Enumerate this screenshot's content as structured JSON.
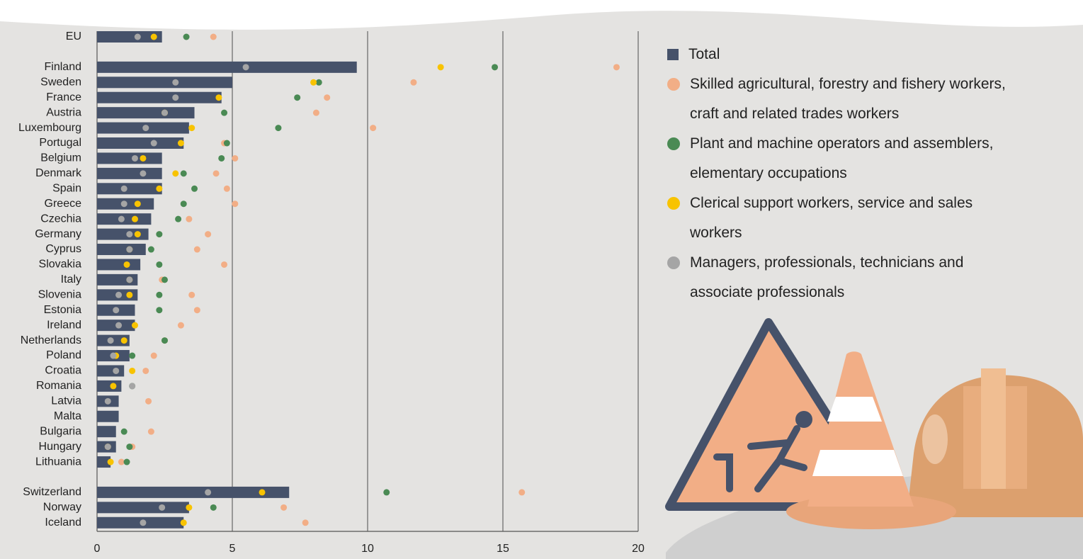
{
  "chart_data": {
    "type": "bar",
    "categories": [
      "EU",
      "Finland",
      "Sweden",
      "France",
      "Austria",
      "Luxembourg",
      "Portugal",
      "Belgium",
      "Denmark",
      "Spain",
      "Greece",
      "Czechia",
      "Germany",
      "Cyprus",
      "Slovakia",
      "Italy",
      "Slovenia",
      "Estonia",
      "Ireland",
      "Netherlands",
      "Poland",
      "Croatia",
      "Romania",
      "Latvia",
      "Malta",
      "Bulgaria",
      "Hungary",
      "Lithuania",
      "Switzerland",
      "Norway",
      "Iceland"
    ],
    "series": [
      {
        "name": "Total",
        "color": "#46526a",
        "values": [
          2.4,
          9.6,
          5.0,
          4.6,
          3.6,
          3.4,
          3.2,
          2.4,
          2.4,
          2.4,
          2.1,
          2.0,
          1.9,
          1.8,
          1.6,
          1.5,
          1.5,
          1.4,
          1.4,
          1.2,
          1.2,
          1.0,
          0.9,
          0.8,
          0.8,
          0.7,
          0.7,
          0.5,
          7.1,
          3.4,
          3.2
        ]
      },
      {
        "name": "Skilled agricultural, forestry and fishery workers, craft and related trades workers",
        "color": "#f2ae86",
        "values": [
          4.3,
          19.2,
          11.7,
          8.5,
          8.1,
          10.2,
          4.7,
          5.1,
          4.4,
          4.8,
          5.1,
          3.4,
          4.1,
          3.7,
          4.7,
          2.4,
          3.5,
          3.7,
          3.1,
          2.5,
          2.1,
          1.8,
          null,
          1.9,
          null,
          2.0,
          1.3,
          0.9,
          15.7,
          6.9,
          7.7
        ]
      },
      {
        "name": "Plant and machine operators and assemblers, elementary occupations",
        "color": "#4a8a54",
        "values": [
          3.3,
          14.7,
          8.2,
          7.4,
          4.7,
          6.7,
          4.8,
          4.6,
          3.2,
          3.6,
          3.2,
          3.0,
          2.3,
          2.0,
          2.3,
          2.5,
          2.3,
          2.3,
          null,
          2.5,
          1.3,
          null,
          1.3,
          null,
          null,
          1.0,
          1.2,
          1.1,
          10.7,
          4.3,
          null
        ]
      },
      {
        "name": "Clerical support workers, service and sales workers",
        "color": "#f8c300",
        "values": [
          2.1,
          12.7,
          8.0,
          4.5,
          2.5,
          3.5,
          3.1,
          1.7,
          2.9,
          2.3,
          1.5,
          1.4,
          1.5,
          1.2,
          1.1,
          1.2,
          1.2,
          null,
          1.4,
          1.0,
          0.7,
          1.3,
          0.6,
          null,
          null,
          null,
          0.4,
          0.5,
          6.1,
          3.4,
          3.2
        ]
      },
      {
        "name": "Managers, professionals, technicians and associate professionals",
        "color": "#a5a5a5",
        "values": [
          1.5,
          5.5,
          2.9,
          2.9,
          2.5,
          1.8,
          2.1,
          1.4,
          1.7,
          1.0,
          1.0,
          0.9,
          1.2,
          1.2,
          null,
          1.2,
          0.8,
          0.7,
          0.8,
          0.5,
          0.6,
          0.7,
          1.3,
          0.4,
          null,
          null,
          0.4,
          null,
          4.1,
          2.4,
          1.7
        ]
      }
    ],
    "xlim": [
      0,
      20
    ],
    "xticks": [
      0,
      5,
      10,
      15,
      20
    ],
    "grid": true
  }
}
